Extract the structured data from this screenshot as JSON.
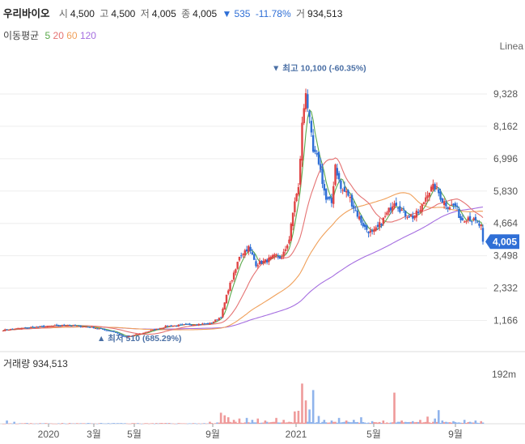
{
  "stock": {
    "name": "우리바이오",
    "open_label": "시",
    "open": "4,500",
    "high_label": "고",
    "high": "4,500",
    "low_label": "저",
    "low": "4,005",
    "close_label": "종",
    "close": "4,005",
    "change_arrow": "▼",
    "change": "535",
    "change_pct": "-11.78%",
    "volume_label": "거",
    "volume": "934,513"
  },
  "ma_legend": {
    "title": "이동평균",
    "items": [
      {
        "label": "5",
        "color": "#5aa84a"
      },
      {
        "label": "20",
        "color": "#e57373"
      },
      {
        "label": "60",
        "color": "#f0a05a"
      },
      {
        "label": "120",
        "color": "#a56ee0"
      }
    ]
  },
  "scale_label": "Linea",
  "volume_panel": {
    "title": "거래량 934,513",
    "axis_label": "192m"
  },
  "chart_data": {
    "type": "candlestick",
    "y_ticks": [
      "9,328",
      "8,162",
      "6,996",
      "5,830",
      "4,664",
      "3,498",
      "2,332",
      "1,166"
    ],
    "y_tick_values": [
      9328,
      8162,
      6996,
      5830,
      4664,
      3498,
      2332,
      1166
    ],
    "last_price_label": "4,005",
    "last_price": 4005,
    "x_ticks": [
      "2020",
      "3월",
      "5월",
      "9월",
      "2021",
      "5월",
      "9월"
    ],
    "annotations": {
      "high": {
        "text": "▼ 최고 10,100 (-60.35%)",
        "value": 10100
      },
      "low": {
        "text": "▲ 최저 510 (685.29%)",
        "value": 510
      }
    },
    "up_color": "#e04444",
    "down_color": "#2f6fd6",
    "ma_colors": {
      "ma5": "#5aa84a",
      "ma20": "#e57373",
      "ma60": "#f0a05a",
      "ma120": "#a56ee0"
    },
    "keyframes": [
      [
        0,
        820
      ],
      [
        12,
        900
      ],
      [
        25,
        960
      ],
      [
        35,
        1000
      ],
      [
        48,
        920
      ],
      [
        60,
        760
      ],
      [
        66,
        560
      ],
      [
        75,
        700
      ],
      [
        88,
        950
      ],
      [
        100,
        1020
      ],
      [
        112,
        1050
      ],
      [
        118,
        1300
      ],
      [
        122,
        2300
      ],
      [
        126,
        3000
      ],
      [
        128,
        3500
      ],
      [
        133,
        3800
      ],
      [
        137,
        3200
      ],
      [
        142,
        3300
      ],
      [
        148,
        3500
      ],
      [
        151,
        3400
      ],
      [
        155,
        4100
      ],
      [
        158,
        5500
      ],
      [
        160,
        5900
      ],
      [
        162,
        8200
      ],
      [
        164,
        9500
      ],
      [
        166,
        8300
      ],
      [
        168,
        7200
      ],
      [
        171,
        6900
      ],
      [
        175,
        5500
      ],
      [
        178,
        5400
      ],
      [
        180,
        6800
      ],
      [
        183,
        5900
      ],
      [
        187,
        5700
      ],
      [
        191,
        5100
      ],
      [
        196,
        4500
      ],
      [
        200,
        4300
      ],
      [
        203,
        4500
      ],
      [
        208,
        5000
      ],
      [
        212,
        5500
      ],
      [
        215,
        5200
      ],
      [
        218,
        5000
      ],
      [
        222,
        4900
      ],
      [
        226,
        5100
      ],
      [
        230,
        5800
      ],
      [
        234,
        6000
      ],
      [
        238,
        5500
      ],
      [
        241,
        5300
      ],
      [
        245,
        5300
      ],
      [
        248,
        4800
      ],
      [
        252,
        4900
      ],
      [
        256,
        4700
      ],
      [
        259,
        4540
      ],
      [
        260,
        4005
      ]
    ],
    "volume_spikes": [
      [
        2,
        0.05
      ],
      [
        6,
        0.03
      ],
      [
        112,
        0.03
      ],
      [
        118,
        0.17
      ],
      [
        120,
        0.13
      ],
      [
        122,
        0.1
      ],
      [
        125,
        0.06
      ],
      [
        128,
        0.08
      ],
      [
        132,
        0.09
      ],
      [
        135,
        0.06
      ],
      [
        138,
        0.08
      ],
      [
        142,
        0.05
      ],
      [
        148,
        0.09
      ],
      [
        152,
        0.06
      ],
      [
        158,
        0.19
      ],
      [
        160,
        0.2
      ],
      [
        162,
        0.62
      ],
      [
        164,
        0.36
      ],
      [
        166,
        0.22
      ],
      [
        168,
        0.52
      ],
      [
        171,
        0.12
      ],
      [
        174,
        0.06
      ],
      [
        178,
        0.05
      ],
      [
        182,
        0.09
      ],
      [
        186,
        0.05
      ],
      [
        190,
        0.06
      ],
      [
        194,
        0.1
      ],
      [
        200,
        0.04
      ],
      [
        206,
        0.05
      ],
      [
        212,
        0.48
      ],
      [
        216,
        0.05
      ],
      [
        222,
        0.04
      ],
      [
        226,
        0.06
      ],
      [
        230,
        0.11
      ],
      [
        234,
        0.08
      ],
      [
        236,
        0.21
      ],
      [
        238,
        0.05
      ],
      [
        244,
        0.04
      ],
      [
        250,
        0.06
      ],
      [
        256,
        0.05
      ],
      [
        259,
        0.04
      ]
    ]
  }
}
